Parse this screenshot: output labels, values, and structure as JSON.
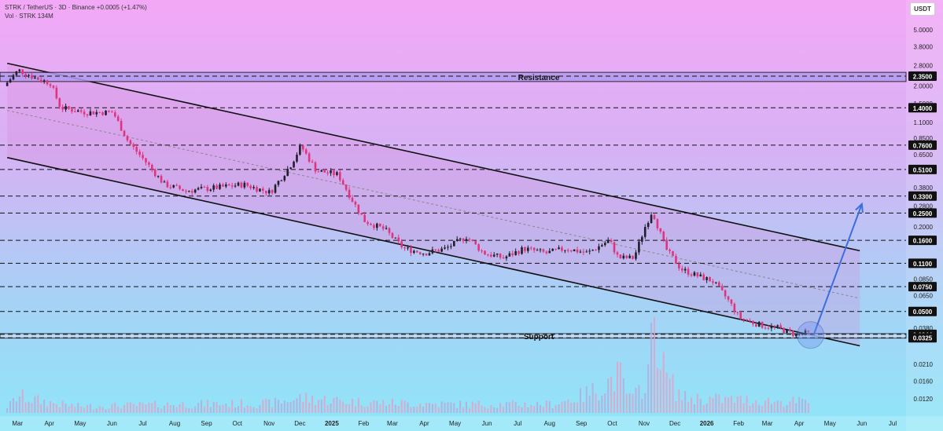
{
  "header": {
    "symbol_line": "STRK / TetherUS · 3D · Binance  +0.0005 (+1.47%)",
    "volume_line": "Vol · STRK  134M",
    "currency": "USDT"
  },
  "chart_data": {
    "type": "candlestick",
    "title": "STRK / TetherUS",
    "scale": "log",
    "ylim": [
      0.0095,
      6.0
    ],
    "grid": false,
    "y_ticks": [
      5.0,
      3.8,
      2.8,
      2.0,
      1.5,
      1.1,
      0.85,
      0.65,
      0.38,
      0.28,
      0.2,
      0.085,
      0.065,
      0.038,
      0.021,
      0.016,
      0.012
    ],
    "y_tick_labels": [
      "5.0000",
      "3.8000",
      "2.8000",
      "2.0000",
      "1.5000",
      "1.1000",
      "0.8500",
      "0.6500",
      "0.3800",
      "0.2800",
      "0.2000",
      "0.0850",
      "0.0650",
      "0.0380",
      "0.0210",
      "0.0160",
      "0.0120"
    ],
    "x_ticks": [
      "2024-03-01",
      "2024-04-01",
      "2024-05-01",
      "2024-06-01",
      "2024-07-01",
      "2024-08-01",
      "2024-09-01",
      "2024-10-01",
      "2024-11-01",
      "2024-12-01",
      "2025-01-01",
      "2025-02-01",
      "2025-03-01",
      "2025-04-01",
      "2025-05-01",
      "2025-06-01",
      "2025-07-01",
      "2025-08-01",
      "2025-09-01",
      "2025-10-01",
      "2025-11-01",
      "2025-12-01",
      "2026-01-01",
      "2026-02-01",
      "2026-03-01",
      "2026-04-01",
      "2026-05-01",
      "2026-06-01",
      "2026-07-01"
    ],
    "x_tick_labels": [
      "Mar",
      "Apr",
      "May",
      "Jun",
      "Jul",
      "Aug",
      "Sep",
      "Oct",
      "Nov",
      "Dec",
      "2025",
      "Feb",
      "Mar",
      "Apr",
      "May",
      "Jun",
      "Jul",
      "Aug",
      "Sep",
      "Oct",
      "Nov",
      "Dec",
      "2026",
      "Feb",
      "Mar",
      "Apr",
      "May",
      "Jun",
      "Jul"
    ],
    "price_path": [
      [
        "2024-02-20",
        2.0
      ],
      [
        "2024-03-05",
        2.6
      ],
      [
        "2024-03-20",
        2.3
      ],
      [
        "2024-04-05",
        2.1
      ],
      [
        "2024-04-15",
        1.4
      ],
      [
        "2024-05-10",
        1.3
      ],
      [
        "2024-06-05",
        1.3
      ],
      [
        "2024-06-20",
        0.8
      ],
      [
        "2024-07-05",
        0.6
      ],
      [
        "2024-07-25",
        0.4
      ],
      [
        "2024-08-15",
        0.36
      ],
      [
        "2024-09-15",
        0.38
      ],
      [
        "2024-10-10",
        0.4
      ],
      [
        "2024-11-05",
        0.35
      ],
      [
        "2024-11-25",
        0.55
      ],
      [
        "2024-12-05",
        0.75
      ],
      [
        "2024-12-20",
        0.5
      ],
      [
        "2025-01-10",
        0.47
      ],
      [
        "2025-01-25",
        0.3
      ],
      [
        "2025-02-05",
        0.22
      ],
      [
        "2025-02-25",
        0.19
      ],
      [
        "2025-03-15",
        0.14
      ],
      [
        "2025-04-05",
        0.13
      ],
      [
        "2025-04-25",
        0.14
      ],
      [
        "2025-05-15",
        0.17
      ],
      [
        "2025-06-01",
        0.13
      ],
      [
        "2025-06-20",
        0.12
      ],
      [
        "2025-07-10",
        0.14
      ],
      [
        "2025-08-01",
        0.13
      ],
      [
        "2025-08-20",
        0.14
      ],
      [
        "2025-09-10",
        0.13
      ],
      [
        "2025-10-01",
        0.16
      ],
      [
        "2025-10-10",
        0.12
      ],
      [
        "2025-10-25",
        0.12
      ],
      [
        "2025-11-05",
        0.2
      ],
      [
        "2025-11-12",
        0.26
      ],
      [
        "2025-11-25",
        0.14
      ],
      [
        "2025-12-10",
        0.1
      ],
      [
        "2025-12-25",
        0.09
      ],
      [
        "2026-01-10",
        0.082
      ],
      [
        "2026-01-25",
        0.06
      ],
      [
        "2026-02-05",
        0.045
      ],
      [
        "2026-02-25",
        0.04
      ],
      [
        "2026-03-15",
        0.038
      ],
      [
        "2026-04-01",
        0.034
      ],
      [
        "2026-04-10",
        0.035
      ]
    ],
    "volume_path": [
      [
        "2024-02-20",
        0.15
      ],
      [
        "2024-03-01",
        0.4
      ],
      [
        "2024-05-01",
        0.15
      ],
      [
        "2024-08-01",
        0.2
      ],
      [
        "2024-11-01",
        0.22
      ],
      [
        "2024-12-01",
        0.35
      ],
      [
        "2025-02-01",
        0.25
      ],
      [
        "2025-05-01",
        0.2
      ],
      [
        "2025-08-01",
        0.2
      ],
      [
        "2025-10-08",
        0.9
      ],
      [
        "2025-10-20",
        0.3
      ],
      [
        "2025-11-05",
        1.0
      ],
      [
        "2025-11-12",
        2.5
      ],
      [
        "2025-11-20",
        1.0
      ],
      [
        "2025-12-10",
        0.35
      ],
      [
        "2026-02-01",
        0.3
      ],
      [
        "2026-04-10",
        0.25
      ]
    ],
    "channel": {
      "upper": [
        [
          "2024-02-20",
          2.9
        ],
        [
          "2026-05-30",
          0.135
        ]
      ],
      "lower": [
        [
          "2024-02-20",
          0.62
        ],
        [
          "2026-05-30",
          0.0285
        ]
      ],
      "end_date": "2026-05-30"
    },
    "zones": [
      {
        "label": "Resistance",
        "low": 2.15,
        "high": 2.5
      },
      {
        "label": "Support",
        "low": 0.0323,
        "high": 0.0348
      }
    ],
    "levels": [
      {
        "value": 2.35,
        "label": "2.3500"
      },
      {
        "value": 1.4,
        "label": "1.4000"
      },
      {
        "value": 0.76,
        "label": "0.7600"
      },
      {
        "value": 0.51,
        "label": "0.5100"
      },
      {
        "value": 0.33,
        "label": "0.3300"
      },
      {
        "value": 0.25,
        "label": "0.2500"
      },
      {
        "value": 0.16,
        "label": "0.1600"
      },
      {
        "value": 0.11,
        "label": "0.1100"
      },
      {
        "value": 0.075,
        "label": "0.0750"
      },
      {
        "value": 0.05,
        "label": "0.0500"
      },
      {
        "value": 0.0344,
        "label": "0.0344"
      },
      {
        "value": 0.0325,
        "label": "0.0325"
      }
    ],
    "projection": {
      "from": [
        "2026-04-15",
        0.034
      ],
      "to": [
        "2026-06-01",
        0.29
      ]
    },
    "highlight_circle": {
      "center": [
        "2026-04-12",
        0.034
      ]
    },
    "colors": {
      "bull": "#1f1f2e",
      "bear": "#e0357e",
      "arrow": "#3b6fe0",
      "circle": "#4f6fdc"
    }
  }
}
